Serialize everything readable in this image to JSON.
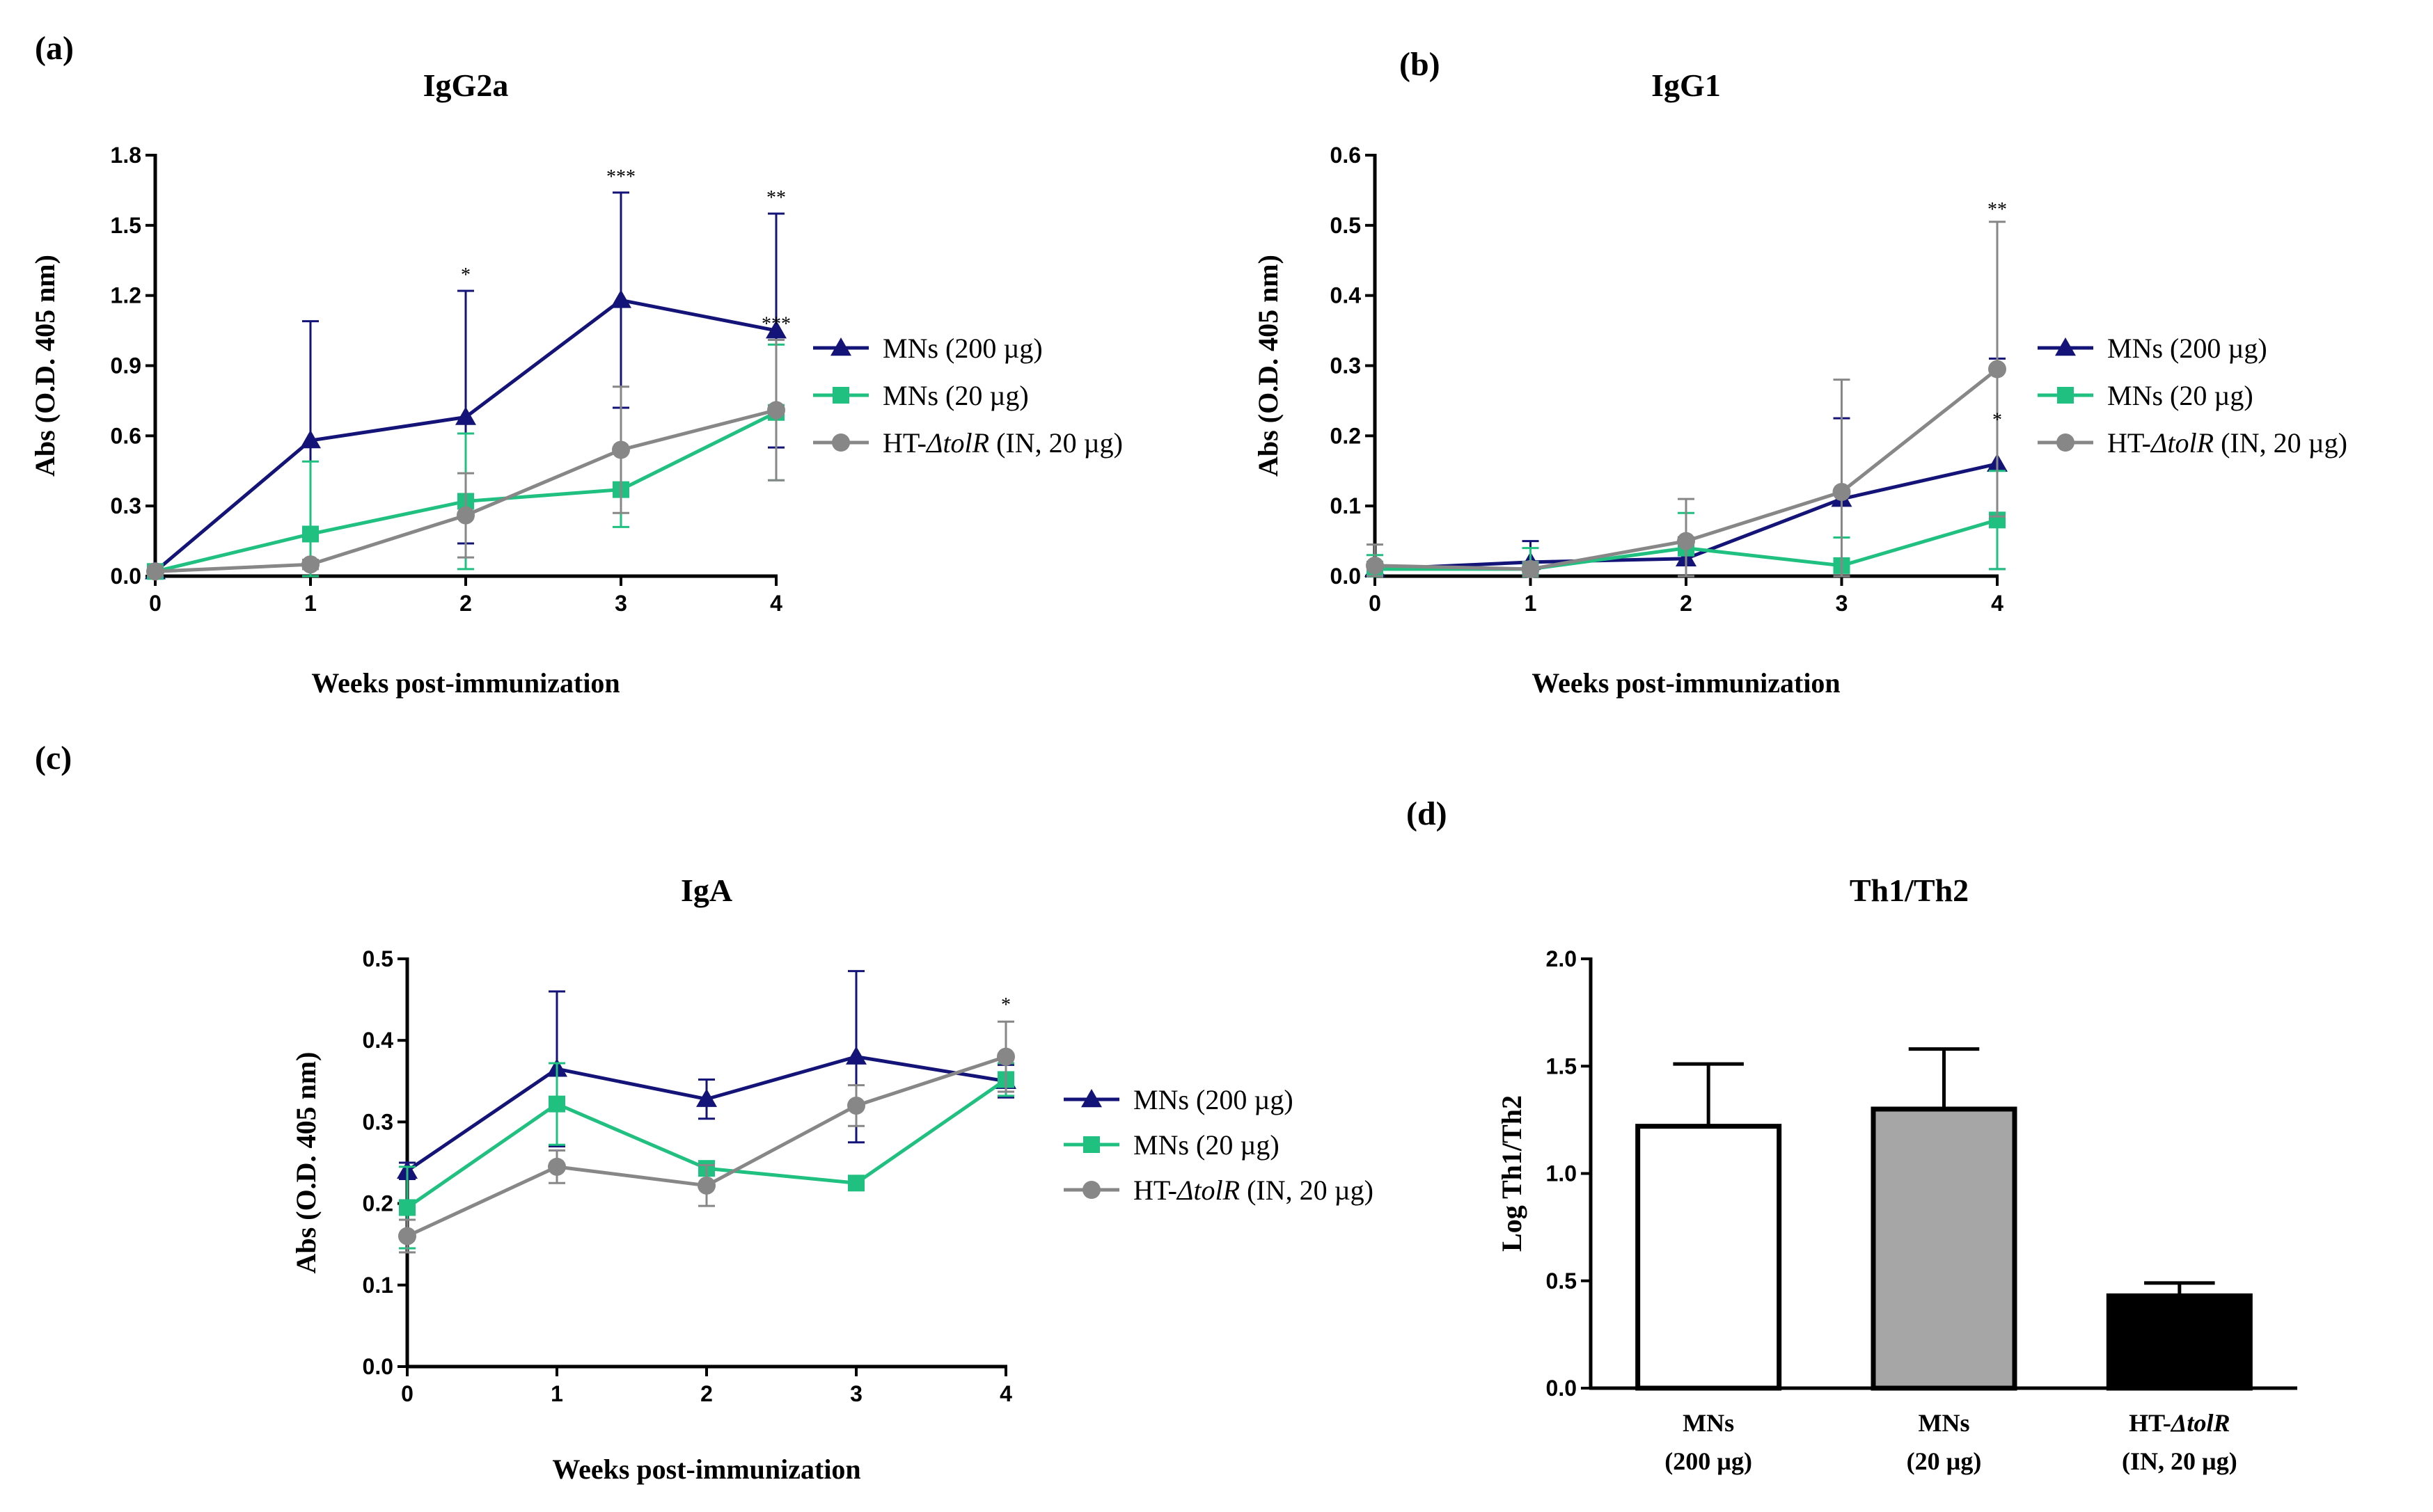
{
  "colors": {
    "MNs (200 µg)": "#141478",
    "MNs (20 µg)": "#1fc080",
    "HT-ΔtolR (IN, 20 µg)": "#878787"
  },
  "chart_data": [
    {
      "id": "a",
      "panel_label": "(a)",
      "type": "line",
      "title": "IgG2a",
      "xlabel": "Weeks post-immunization",
      "ylabel": "Abs (O.D. 405 nm)",
      "x": [
        0,
        1,
        2,
        3,
        4
      ],
      "xticks": [
        "0",
        "1",
        "2",
        "3",
        "4"
      ],
      "ylim": [
        0,
        1.8
      ],
      "yticks": [
        "0.0",
        "0.3",
        "0.6",
        "0.9",
        "1.2",
        "1.5",
        "1.8"
      ],
      "series": [
        {
          "name": "MNs (200 µg)",
          "marker": "triangle",
          "values": [
            0.02,
            0.58,
            0.68,
            1.18,
            1.05
          ],
          "errors": [
            0.01,
            0.51,
            0.54,
            0.46,
            0.5
          ]
        },
        {
          "name": "MNs (20 µg)",
          "marker": "square",
          "values": [
            0.02,
            0.18,
            0.32,
            0.37,
            0.7
          ],
          "errors": [
            0.01,
            0.31,
            0.29,
            0.16,
            0.29
          ]
        },
        {
          "name": "HT-ΔtolR (IN, 20 µg)",
          "marker": "circle",
          "values": [
            0.02,
            0.05,
            0.26,
            0.54,
            0.71
          ],
          "errors": [
            0.01,
            0.02,
            0.18,
            0.27,
            0.3
          ]
        }
      ],
      "annotations": [
        {
          "x": 2,
          "y": 1.22,
          "text": "*",
          "series": "MNs (200 µg)"
        },
        {
          "x": 3,
          "y": 1.64,
          "text": "***",
          "series": "MNs (200 µg)"
        },
        {
          "x": 4,
          "y": 1.55,
          "text": "**",
          "series": "MNs (200 µg)"
        },
        {
          "x": 4,
          "y": 1.01,
          "text": "***",
          "series": "HT-ΔtolR (IN, 20 µg)"
        }
      ],
      "legend": "right"
    },
    {
      "id": "b",
      "panel_label": "(b)",
      "type": "line",
      "title": "IgG1",
      "xlabel": "Weeks post-immunization",
      "ylabel": "Abs (O.D. 405 nm)",
      "x": [
        0,
        1,
        2,
        3,
        4
      ],
      "xticks": [
        "0",
        "1",
        "2",
        "3",
        "4"
      ],
      "ylim": [
        0,
        0.6
      ],
      "yticks": [
        "0.0",
        "0.1",
        "0.2",
        "0.3",
        "0.4",
        "0.5",
        "0.6"
      ],
      "series": [
        {
          "name": "MNs (200 µg)",
          "marker": "triangle",
          "values": [
            0.01,
            0.02,
            0.025,
            0.11,
            0.16
          ],
          "errors": [
            0.01,
            0.03,
            0.03,
            0.115,
            0.15
          ]
        },
        {
          "name": "MNs (20 µg)",
          "marker": "square",
          "values": [
            0.01,
            0.01,
            0.04,
            0.015,
            0.08
          ],
          "errors": [
            0.02,
            0.03,
            0.05,
            0.04,
            0.07
          ]
        },
        {
          "name": "HT-ΔtolR (IN, 20 µg)",
          "marker": "circle",
          "values": [
            0.015,
            0.01,
            0.05,
            0.12,
            0.295
          ],
          "errors": [
            0.03,
            0.01,
            0.06,
            0.16,
            0.21
          ]
        }
      ],
      "annotations": [
        {
          "x": 4,
          "y": 0.5,
          "text": "**",
          "series": "HT-ΔtolR (IN, 20 µg)"
        },
        {
          "x": 4,
          "y": 0.2,
          "text": "*",
          "series": "MNs (200 µg)"
        }
      ],
      "legend": "right"
    },
    {
      "id": "c",
      "panel_label": "(c)",
      "type": "line",
      "title": "IgA",
      "xlabel": "Weeks post-immunization",
      "ylabel": "Abs (O.D. 405 nm)",
      "x": [
        0,
        1,
        2,
        3,
        4
      ],
      "xticks": [
        "0",
        "1",
        "2",
        "3",
        "4"
      ],
      "ylim": [
        0,
        0.5
      ],
      "yticks": [
        "0.0",
        "0.1",
        "0.2",
        "0.3",
        "0.4",
        "0.5"
      ],
      "series": [
        {
          "name": "MNs (200 µg)",
          "marker": "triangle",
          "values": [
            0.24,
            0.365,
            0.328,
            0.38,
            0.35
          ],
          "errors": [
            0.01,
            0.095,
            0.024,
            0.105,
            0.02
          ]
        },
        {
          "name": "MNs (20 µg)",
          "marker": "square",
          "values": [
            0.195,
            0.322,
            0.243,
            0.225,
            0.352
          ],
          "errors": [
            0.05,
            0.05,
            0.006,
            0.006,
            0.02
          ]
        },
        {
          "name": "HT-ΔtolR (IN, 20 µg)",
          "marker": "circle",
          "values": [
            0.16,
            0.245,
            0.222,
            0.32,
            0.38
          ],
          "errors": [
            0.02,
            0.02,
            0.025,
            0.025,
            0.043
          ]
        }
      ],
      "annotations": [
        {
          "x": 4,
          "y": 0.424,
          "text": "*",
          "series": "HT-ΔtolR (IN, 20 µg)"
        }
      ],
      "legend": "right"
    },
    {
      "id": "d",
      "panel_label": "(d)",
      "type": "bar",
      "title": "Th1/Th2",
      "xlabel": "",
      "ylabel": "Log Th1/Th2",
      "categories": [
        "MNs (200 µg)",
        "MNs (20 µg)",
        "HT-ΔtolR (IN, 20 µg)"
      ],
      "category_lines": [
        [
          "MNs",
          "(200 µg)"
        ],
        [
          "MNs",
          "(20 µg)"
        ],
        [
          "HT-ΔtolR",
          "(IN, 20 µg)"
        ]
      ],
      "values": [
        1.22,
        1.3,
        0.43
      ],
      "errors": [
        0.29,
        0.28,
        0.06
      ],
      "fills": [
        "#ffffff",
        "#a6a6a6",
        "#000000"
      ],
      "ylim": [
        0,
        2.0
      ],
      "yticks": [
        "0.0",
        "0.5",
        "1.0",
        "1.5",
        "2.0"
      ]
    }
  ]
}
